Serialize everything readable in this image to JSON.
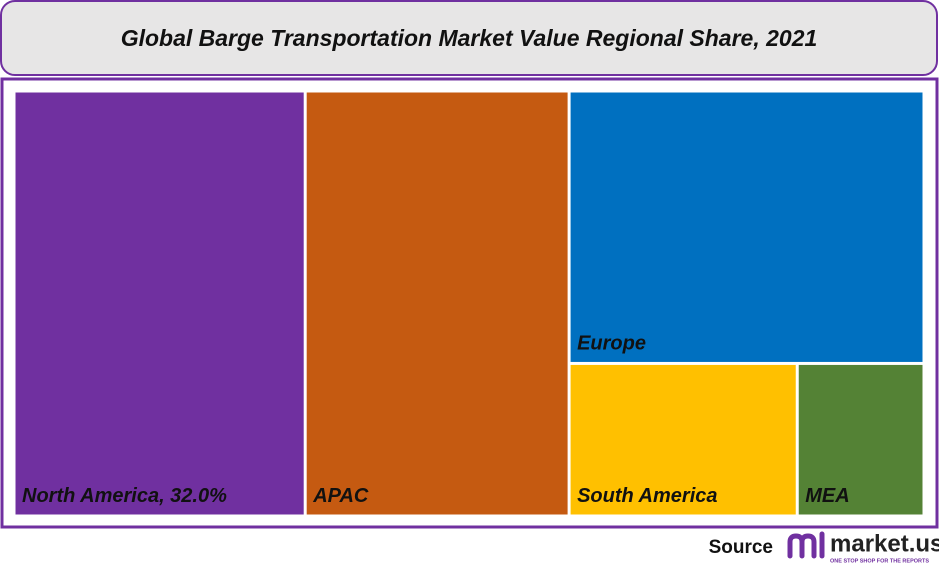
{
  "chart_data": {
    "type": "treemap",
    "title": "Global Barge Transportation Market Value Regional Share, 2021",
    "categories": [
      "North America, 32.0%",
      "APAC",
      "Europe",
      "South America",
      "MEA"
    ],
    "values": [
      32.0,
      29.0,
      25.0,
      9.0,
      5.0
    ],
    "colors": [
      "#7030a0",
      "#c55a11",
      "#0070c0",
      "#ffc000",
      "#548235"
    ]
  },
  "source": {
    "label": "Source",
    "brand": "market.us",
    "tagline": "ONE STOP SHOP FOR THE REPORTS"
  }
}
